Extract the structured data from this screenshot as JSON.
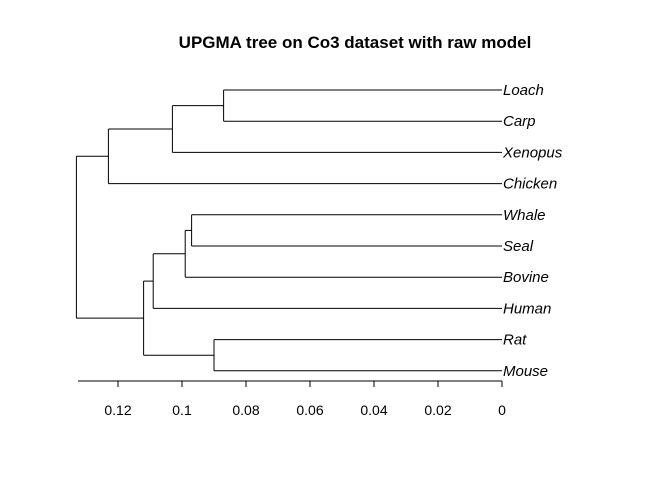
{
  "chart_data": {
    "type": "dendrogram",
    "title": "UPGMA tree on Co3 dataset with raw model",
    "xlim": [
      0.1325,
      0
    ],
    "axis_ticks": [
      0.12,
      0.1,
      0.08,
      0.06,
      0.04,
      0.02,
      0
    ],
    "tips": [
      "Loach",
      "Carp",
      "Xenopus",
      "Chicken",
      "Whale",
      "Seal",
      "Bovine",
      "Human",
      "Rat",
      "Mouse"
    ],
    "tree": {
      "height": 0.133,
      "children": [
        {
          "height": 0.123,
          "children": [
            {
              "height": 0.103,
              "children": [
                {
                  "height": 0.087,
                  "children": [
                    {
                      "tip": 0
                    },
                    {
                      "tip": 1
                    }
                  ]
                },
                {
                  "tip": 2
                }
              ]
            },
            {
              "tip": 3
            }
          ]
        },
        {
          "height": 0.112,
          "children": [
            {
              "height": 0.109,
              "children": [
                {
                  "height": 0.099,
                  "children": [
                    {
                      "height": 0.097,
                      "children": [
                        {
                          "tip": 4
                        },
                        {
                          "tip": 5
                        }
                      ]
                    },
                    {
                      "tip": 6
                    }
                  ]
                },
                {
                  "tip": 7
                }
              ]
            },
            {
              "height": 0.09,
              "children": [
                {
                  "tip": 8
                },
                {
                  "tip": 9
                }
              ]
            }
          ]
        }
      ]
    }
  }
}
